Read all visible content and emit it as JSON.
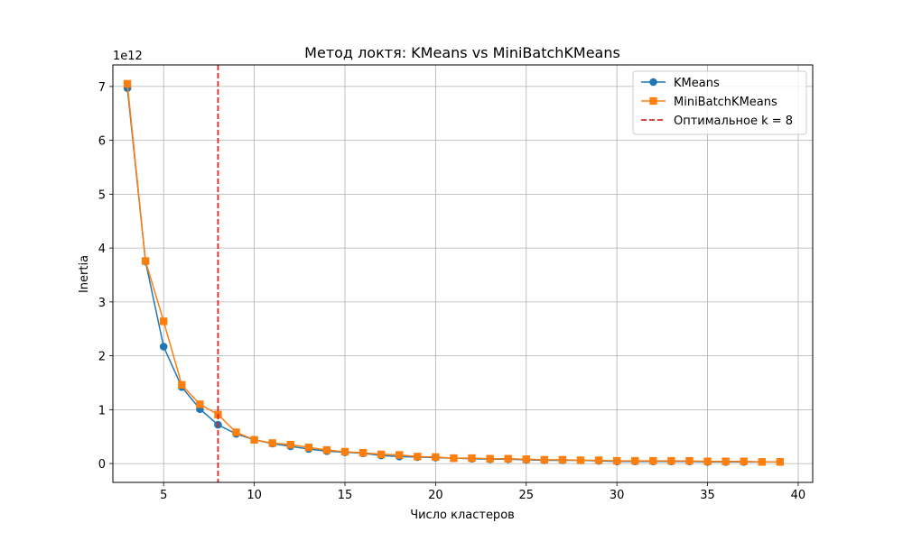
{
  "chart_data": {
    "type": "line",
    "title": "Метод локтя: KMeans vs MiniBatchKMeans",
    "xlabel": "Число кластеров",
    "ylabel": "Inertia",
    "y_scale_label": "1e12",
    "xlim": [
      2.2,
      40.8
    ],
    "ylim": [
      -0.35,
      7.4
    ],
    "x_ticks": [
      5,
      10,
      15,
      20,
      25,
      30,
      35,
      40
    ],
    "y_ticks": [
      0,
      1,
      2,
      3,
      4,
      5,
      6,
      7
    ],
    "grid": true,
    "legend_position": "top-right",
    "x": [
      3,
      4,
      5,
      6,
      7,
      8,
      9,
      10,
      11,
      12,
      13,
      14,
      15,
      16,
      17,
      18,
      19,
      20,
      21,
      22,
      23,
      24,
      25,
      26,
      27,
      28,
      29,
      30,
      31,
      32,
      33,
      34,
      35,
      36,
      37,
      38,
      39
    ],
    "series": [
      {
        "name": "KMeans",
        "color": "#1f77b4",
        "marker": "circle",
        "values": [
          6.97,
          3.75,
          2.17,
          1.42,
          1.01,
          0.72,
          0.55,
          0.44,
          0.37,
          0.32,
          0.27,
          0.23,
          0.21,
          0.19,
          0.15,
          0.13,
          0.12,
          0.11,
          0.1,
          0.09,
          0.08,
          0.08,
          0.07,
          0.06,
          0.06,
          0.06,
          0.05,
          0.04,
          0.04,
          0.04,
          0.04,
          0.04,
          0.03,
          0.03,
          0.03,
          0.03,
          0.03
        ]
      },
      {
        "name": "MiniBatchKMeans",
        "color": "#ff7f0e",
        "marker": "square",
        "values": [
          7.05,
          3.76,
          2.64,
          1.46,
          1.1,
          0.91,
          0.58,
          0.44,
          0.38,
          0.35,
          0.3,
          0.25,
          0.22,
          0.2,
          0.17,
          0.16,
          0.13,
          0.12,
          0.1,
          0.1,
          0.09,
          0.09,
          0.08,
          0.07,
          0.07,
          0.06,
          0.06,
          0.05,
          0.05,
          0.05,
          0.05,
          0.05,
          0.04,
          0.04,
          0.04,
          0.03,
          0.03
        ]
      }
    ],
    "vline": {
      "x": 8,
      "label": "Оптимальное k = 8",
      "color": "#d62728",
      "style": "dashed"
    }
  }
}
